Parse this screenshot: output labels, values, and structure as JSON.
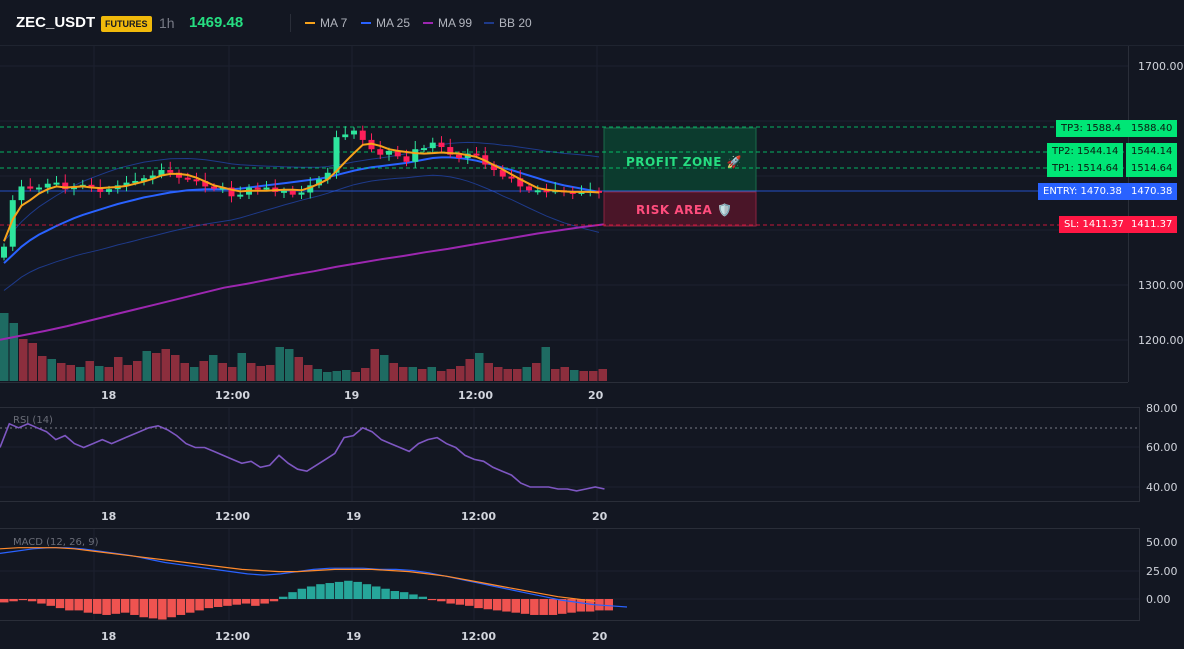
{
  "header": {
    "symbol": "ZEC_USDT",
    "badge": "FUTURES",
    "timeframe": "1h",
    "price": "1469.48",
    "legend": [
      {
        "label": "MA 7",
        "color": "#f7a21b"
      },
      {
        "label": "MA 25",
        "color": "#2962ff"
      },
      {
        "label": "MA 99",
        "color": "#9c27b0"
      },
      {
        "label": "BB 20",
        "color": "#1e3a8a"
      }
    ]
  },
  "price_axis": [
    "1700.00",
    "1300.00",
    "1200.00"
  ],
  "x_axis": [
    "18",
    "12:00",
    "19",
    "12:00",
    "20"
  ],
  "levels": {
    "tp3": {
      "tag": "TP3: 1588.4",
      "axis": "1588.40",
      "color": "#00e676"
    },
    "tp2": {
      "tag": "TP2: 1544.14",
      "axis": "1544.14",
      "color": "#00e676"
    },
    "tp1": {
      "tag": "TP1: 1514.64",
      "axis": "1514.64",
      "color": "#00e676"
    },
    "entry": {
      "tag": "ENTRY: 1470.38",
      "axis": "1470.38",
      "color": "#2962ff"
    },
    "sl": {
      "tag": "SL: 1411.37",
      "axis": "1411.37",
      "color": "#ff1744"
    }
  },
  "zones": {
    "profit": "PROFIT ZONE 🚀",
    "risk": "RISK AREA 🛡️"
  },
  "rsi": {
    "title": "RSI (14)",
    "axis": [
      "80.00",
      "60.00",
      "40.00"
    ]
  },
  "macd": {
    "title": "MACD (12, 26, 9)",
    "axis": [
      "50.00",
      "25.00",
      "0.00"
    ]
  },
  "colors": {
    "up": "#26a69a",
    "down": "#ef5350",
    "candle_up": "#2ee59d",
    "candle_down": "#ff1f5a",
    "vol_up": "#1e6b62",
    "vol_down": "#8c2e3d"
  },
  "chart_data": {
    "type": "candlestick",
    "close": [
      1370,
      1455,
      1480,
      1476,
      1478,
      1485,
      1487,
      1475,
      1480,
      1483,
      1478,
      1470,
      1475,
      1482,
      1487,
      1490,
      1495,
      1500,
      1510,
      1505,
      1496,
      1493,
      1490,
      1480,
      1476,
      1478,
      1462,
      1465,
      1478,
      1476,
      1478,
      1470,
      1472,
      1465,
      1469,
      1482,
      1493,
      1505,
      1570,
      1575,
      1582,
      1565,
      1548,
      1538,
      1545,
      1535,
      1525,
      1548,
      1550,
      1560,
      1552,
      1538,
      1532,
      1540,
      1537,
      1520,
      1510,
      1498,
      1495,
      1480,
      1473,
      1473,
      1471,
      1473,
      1470,
      1468,
      1470,
      1472,
      1469
    ],
    "ma7": [
      1380,
      1420,
      1445,
      1455,
      1467,
      1475,
      1480,
      1478,
      1479,
      1480,
      1478,
      1477,
      1478,
      1479,
      1481,
      1485,
      1489,
      1494,
      1500,
      1503,
      1503,
      1501,
      1496,
      1489,
      1482,
      1478,
      1474,
      1471,
      1472,
      1472,
      1472,
      1473,
      1474,
      1474,
      1473,
      1478,
      1485,
      1493,
      1508,
      1525,
      1541,
      1556,
      1558,
      1554,
      1548,
      1545,
      1543,
      1541,
      1540,
      1541,
      1542,
      1541,
      1540,
      1537,
      1534,
      1527,
      1519,
      1511,
      1502,
      1493,
      1485,
      1477,
      1474,
      1472,
      1471,
      1470,
      1470,
      1470,
      1469
    ],
    "ma25": [
      1340,
      1355,
      1370,
      1382,
      1392,
      1400,
      1408,
      1415,
      1422,
      1428,
      1433,
      1438,
      1443,
      1448,
      1452,
      1456,
      1460,
      1463,
      1466,
      1469,
      1471,
      1473,
      1474,
      1475,
      1475,
      1475,
      1475,
      1476,
      1478,
      1480,
      1482,
      1484,
      1486,
      1488,
      1490,
      1492,
      1494,
      1497,
      1501,
      1505,
      1509,
      1512,
      1515,
      1517,
      1519,
      1521,
      1523,
      1526,
      1529,
      1532,
      1533,
      1533,
      1532,
      1530,
      1527,
      1523,
      1519,
      1514,
      1510,
      1505,
      1500,
      1495,
      1490,
      1486,
      1482,
      1479,
      1476,
      1473,
      1470
    ],
    "ma99": [
      1200,
      1208,
      1216,
      1225,
      1235,
      1245,
      1255,
      1265,
      1275,
      1285,
      1295,
      1302,
      1310,
      1318,
      1325,
      1333,
      1340,
      1347,
      1353,
      1360,
      1366,
      1373,
      1380,
      1387,
      1394,
      1400,
      1406,
      1411
    ],
    "rsi": [
      60,
      72,
      70,
      72,
      70,
      68,
      64,
      66,
      62,
      60,
      62,
      64,
      62,
      64,
      66,
      68,
      70,
      71,
      69,
      66,
      62,
      60,
      60,
      58,
      56,
      54,
      52,
      53,
      50,
      51,
      56,
      52,
      49,
      48,
      51,
      54,
      57,
      65,
      66,
      70,
      68,
      64,
      62,
      60,
      58,
      62,
      64,
      65,
      62,
      60,
      56,
      54,
      53,
      50,
      48,
      46,
      42,
      40,
      40,
      40,
      39,
      39,
      38,
      39,
      40,
      39
    ],
    "macd_hist": [
      -3,
      -2,
      -1,
      -2,
      -4,
      -6,
      -8,
      -10,
      -10,
      -12,
      -13,
      -14,
      -13,
      -12,
      -14,
      -16,
      -17,
      -18,
      -16,
      -14,
      -12,
      -10,
      -8,
      -7,
      -6,
      -5,
      -4,
      -6,
      -4,
      -2,
      2,
      6,
      9,
      11,
      13,
      14,
      15,
      16,
      15,
      13,
      11,
      9,
      7,
      6,
      4,
      2,
      -1,
      -2,
      -4,
      -5,
      -6,
      -8,
      -9,
      -10,
      -11,
      -12,
      -13,
      -14,
      -14,
      -14,
      -13,
      -12,
      -11,
      -11,
      -10,
      -10
    ],
    "macd_line": [
      40,
      42,
      44,
      45,
      45,
      44,
      42,
      40,
      38,
      35,
      32,
      30,
      28,
      26,
      24,
      22,
      21,
      22,
      24,
      26,
      27,
      27,
      27,
      26,
      26,
      25,
      23,
      20,
      17,
      14,
      11,
      8,
      5,
      2,
      -1,
      -3,
      -5,
      -6,
      -7
    ],
    "macd_signal": [
      44,
      45,
      45,
      45,
      44,
      42,
      40,
      38,
      36,
      34,
      32,
      30,
      28,
      26,
      25,
      24,
      24,
      25,
      26,
      26,
      26,
      25,
      24,
      22,
      20,
      17,
      14,
      11,
      8,
      5,
      2,
      0,
      -2
    ]
  }
}
